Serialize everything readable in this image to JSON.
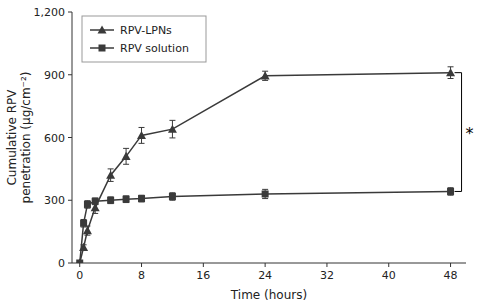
{
  "chart_data": {
    "type": "line",
    "xlabel": "Time (hours)",
    "ylabel": "Cumulative RPV\npenetration (μg/cm⁻²)",
    "x": [
      0,
      0.5,
      1,
      2,
      4,
      6,
      8,
      12,
      24,
      48
    ],
    "series": [
      {
        "name": "RPV-LPNs",
        "color": "#3a3a3a",
        "marker": "triangle",
        "values": [
          0,
          75,
          155,
          265,
          420,
          510,
          610,
          640,
          895,
          910
        ],
        "errors": [
          0,
          12,
          22,
          28,
          30,
          38,
          38,
          42,
          22,
          28
        ]
      },
      {
        "name": "RPV solution",
        "color": "#3a3a3a",
        "marker": "square",
        "values": [
          0,
          190,
          280,
          295,
          300,
          305,
          308,
          318,
          330,
          342
        ],
        "errors": [
          0,
          18,
          18,
          16,
          16,
          16,
          16,
          18,
          22,
          18
        ]
      }
    ],
    "xlim": [
      -1,
      50
    ],
    "ylim": [
      0,
      1200
    ],
    "xticks": [
      0,
      8,
      16,
      24,
      32,
      40,
      48
    ],
    "yticks": [
      0,
      300,
      600,
      900,
      {
        "value": 1200,
        "label": "1,200"
      }
    ],
    "grid": false,
    "legend": "upper left",
    "annotations": [
      {
        "text": "*",
        "y1": 910,
        "y2": 342
      }
    ]
  }
}
